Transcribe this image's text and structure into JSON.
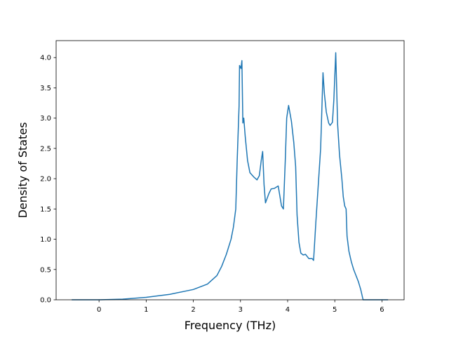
{
  "chart_data": {
    "type": "line",
    "xlabel": "Frequency (THz)",
    "ylabel": "Density of States",
    "xlim": [
      -0.91,
      6.47
    ],
    "ylim": [
      0,
      4.28
    ],
    "xticks": [
      0,
      1,
      2,
      3,
      4,
      5,
      6
    ],
    "yticks": [
      {
        "value": 0,
        "label": "0.0"
      },
      {
        "value": 0.5,
        "label": "0.5"
      },
      {
        "value": 1,
        "label": "1.0"
      },
      {
        "value": 1.5,
        "label": "1.5"
      },
      {
        "value": 2,
        "label": "2.0"
      },
      {
        "value": 2.5,
        "label": "2.5"
      },
      {
        "value": 3,
        "label": "3.0"
      },
      {
        "value": 3.5,
        "label": "3.5"
      },
      {
        "value": 4,
        "label": "4.0"
      }
    ],
    "color": "#1f77b4",
    "x": [
      -0.58,
      0,
      0.5,
      1,
      1.5,
      2,
      2.3,
      2.5,
      2.6,
      2.7,
      2.8,
      2.85,
      2.9,
      2.93,
      2.97,
      2.98,
      3.01,
      3.03,
      3.05,
      3.07,
      3.1,
      3.15,
      3.2,
      3.28,
      3.35,
      3.4,
      3.44,
      3.47,
      3.5,
      3.53,
      3.6,
      3.65,
      3.72,
      3.8,
      3.87,
      3.91,
      3.95,
      3.98,
      4.02,
      4.08,
      4.13,
      4.17,
      4.2,
      4.24,
      4.28,
      4.33,
      4.38,
      4.45,
      4.52,
      4.55,
      4.6,
      4.65,
      4.7,
      4.75,
      4.78,
      4.82,
      4.87,
      4.9,
      4.95,
      4.98,
      5.02,
      5.06,
      5.1,
      5.15,
      5.18,
      5.21,
      5.24,
      5.26,
      5.3,
      5.35,
      5.4,
      5.5,
      5.55,
      5.6,
      6.13
    ],
    "values": [
      0,
      0,
      0.01,
      0.04,
      0.09,
      0.17,
      0.26,
      0.4,
      0.55,
      0.75,
      1.0,
      1.2,
      1.5,
      2.3,
      3.2,
      3.87,
      3.82,
      3.95,
      2.92,
      3.0,
      2.7,
      2.3,
      2.1,
      2.03,
      1.98,
      2.05,
      2.3,
      2.45,
      1.9,
      1.6,
      1.75,
      1.83,
      1.84,
      1.88,
      1.55,
      1.5,
      2.3,
      3.0,
      3.21,
      2.95,
      2.6,
      2.2,
      1.4,
      0.95,
      0.77,
      0.74,
      0.75,
      0.68,
      0.68,
      0.65,
      1.3,
      1.9,
      2.5,
      3.75,
      3.4,
      3.1,
      2.92,
      2.88,
      2.93,
      3.3,
      4.08,
      2.9,
      2.4,
      2.0,
      1.7,
      1.55,
      1.5,
      1.05,
      0.8,
      0.63,
      0.5,
      0.3,
      0.17,
      0,
      0
    ]
  }
}
